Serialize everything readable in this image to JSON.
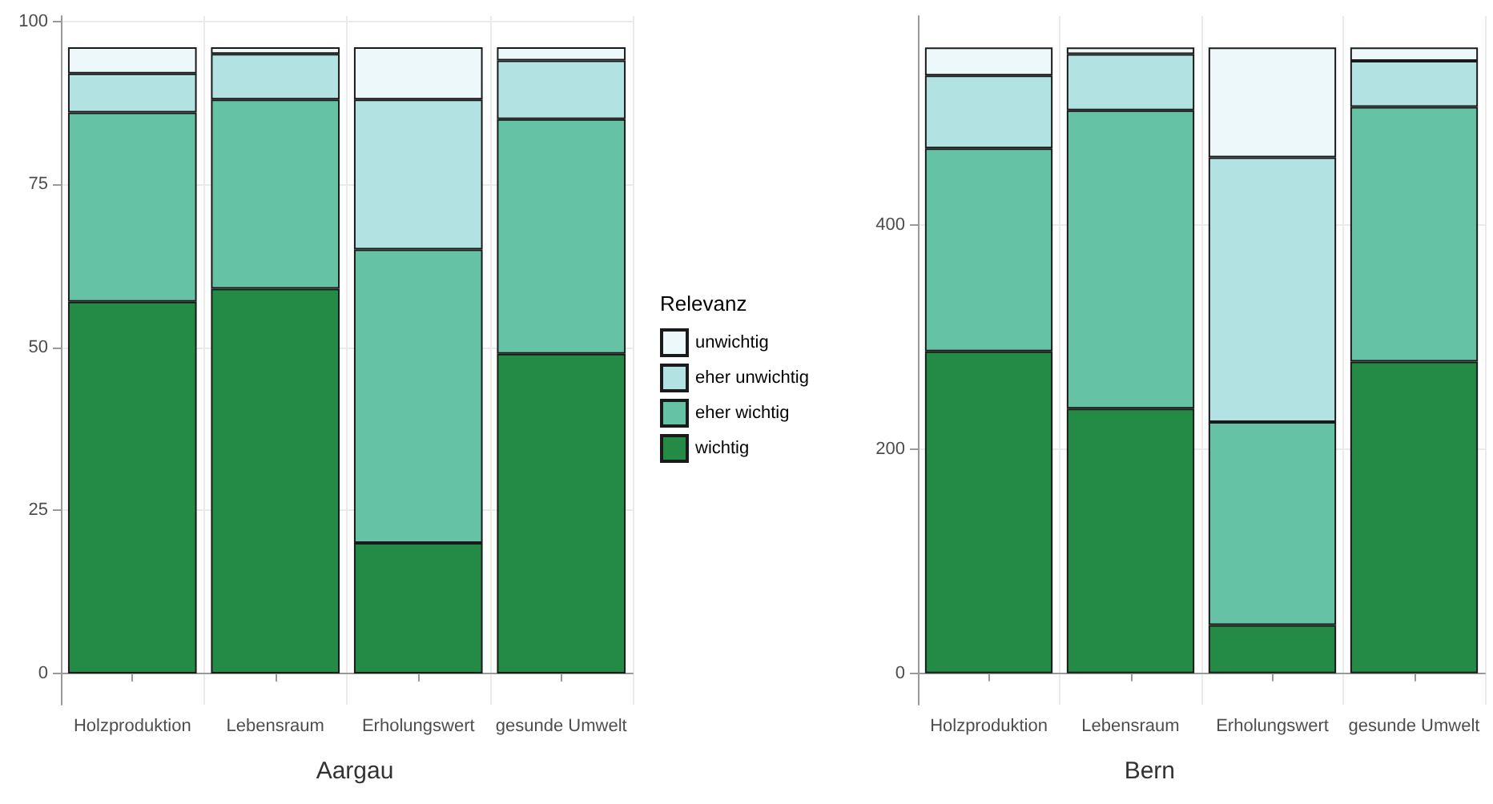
{
  "chart_data": [
    {
      "type": "bar",
      "title": "Aargau",
      "legend_title": "Relevanz",
      "stacked": true,
      "grid": true,
      "legend": "right",
      "categories": [
        "Holzproduktion",
        "Lebensraum",
        "Erholungswert",
        "gesunde Umwelt"
      ],
      "ylim": [
        -4.8,
        100.8
      ],
      "yticks": [
        0,
        25,
        50,
        75,
        100
      ],
      "series": [
        {
          "name": "wichtig",
          "color": "#238b45",
          "values": [
            57,
            59,
            20,
            49
          ]
        },
        {
          "name": "eher wichtig",
          "color": "#66c2a4",
          "values": [
            29,
            29,
            45,
            36
          ]
        },
        {
          "name": "eher unwichtig",
          "color": "#b2e2e2",
          "values": [
            6,
            7,
            23,
            9
          ]
        },
        {
          "name": "unwichtig",
          "color": "#edf8fb",
          "values": [
            4,
            1,
            8,
            2
          ]
        }
      ]
    },
    {
      "type": "bar",
      "title": "Bern",
      "stacked": true,
      "grid": true,
      "categories": [
        "Holzproduktion",
        "Lebensraum",
        "Erholungswert",
        "gesunde Umwelt"
      ],
      "ylim": [
        -28,
        586
      ],
      "yticks": [
        0,
        200,
        400
      ],
      "series": [
        {
          "color": "#238b45",
          "values": [
            287,
            236,
            43,
            278
          ]
        },
        {
          "color": "#66c2a4",
          "values": [
            181,
            266,
            181,
            227
          ]
        },
        {
          "color": "#b2e2e2",
          "values": [
            65,
            50,
            236,
            41
          ]
        },
        {
          "color": "#edf8fb",
          "values": [
            25,
            6,
            98,
            12
          ]
        }
      ]
    }
  ]
}
